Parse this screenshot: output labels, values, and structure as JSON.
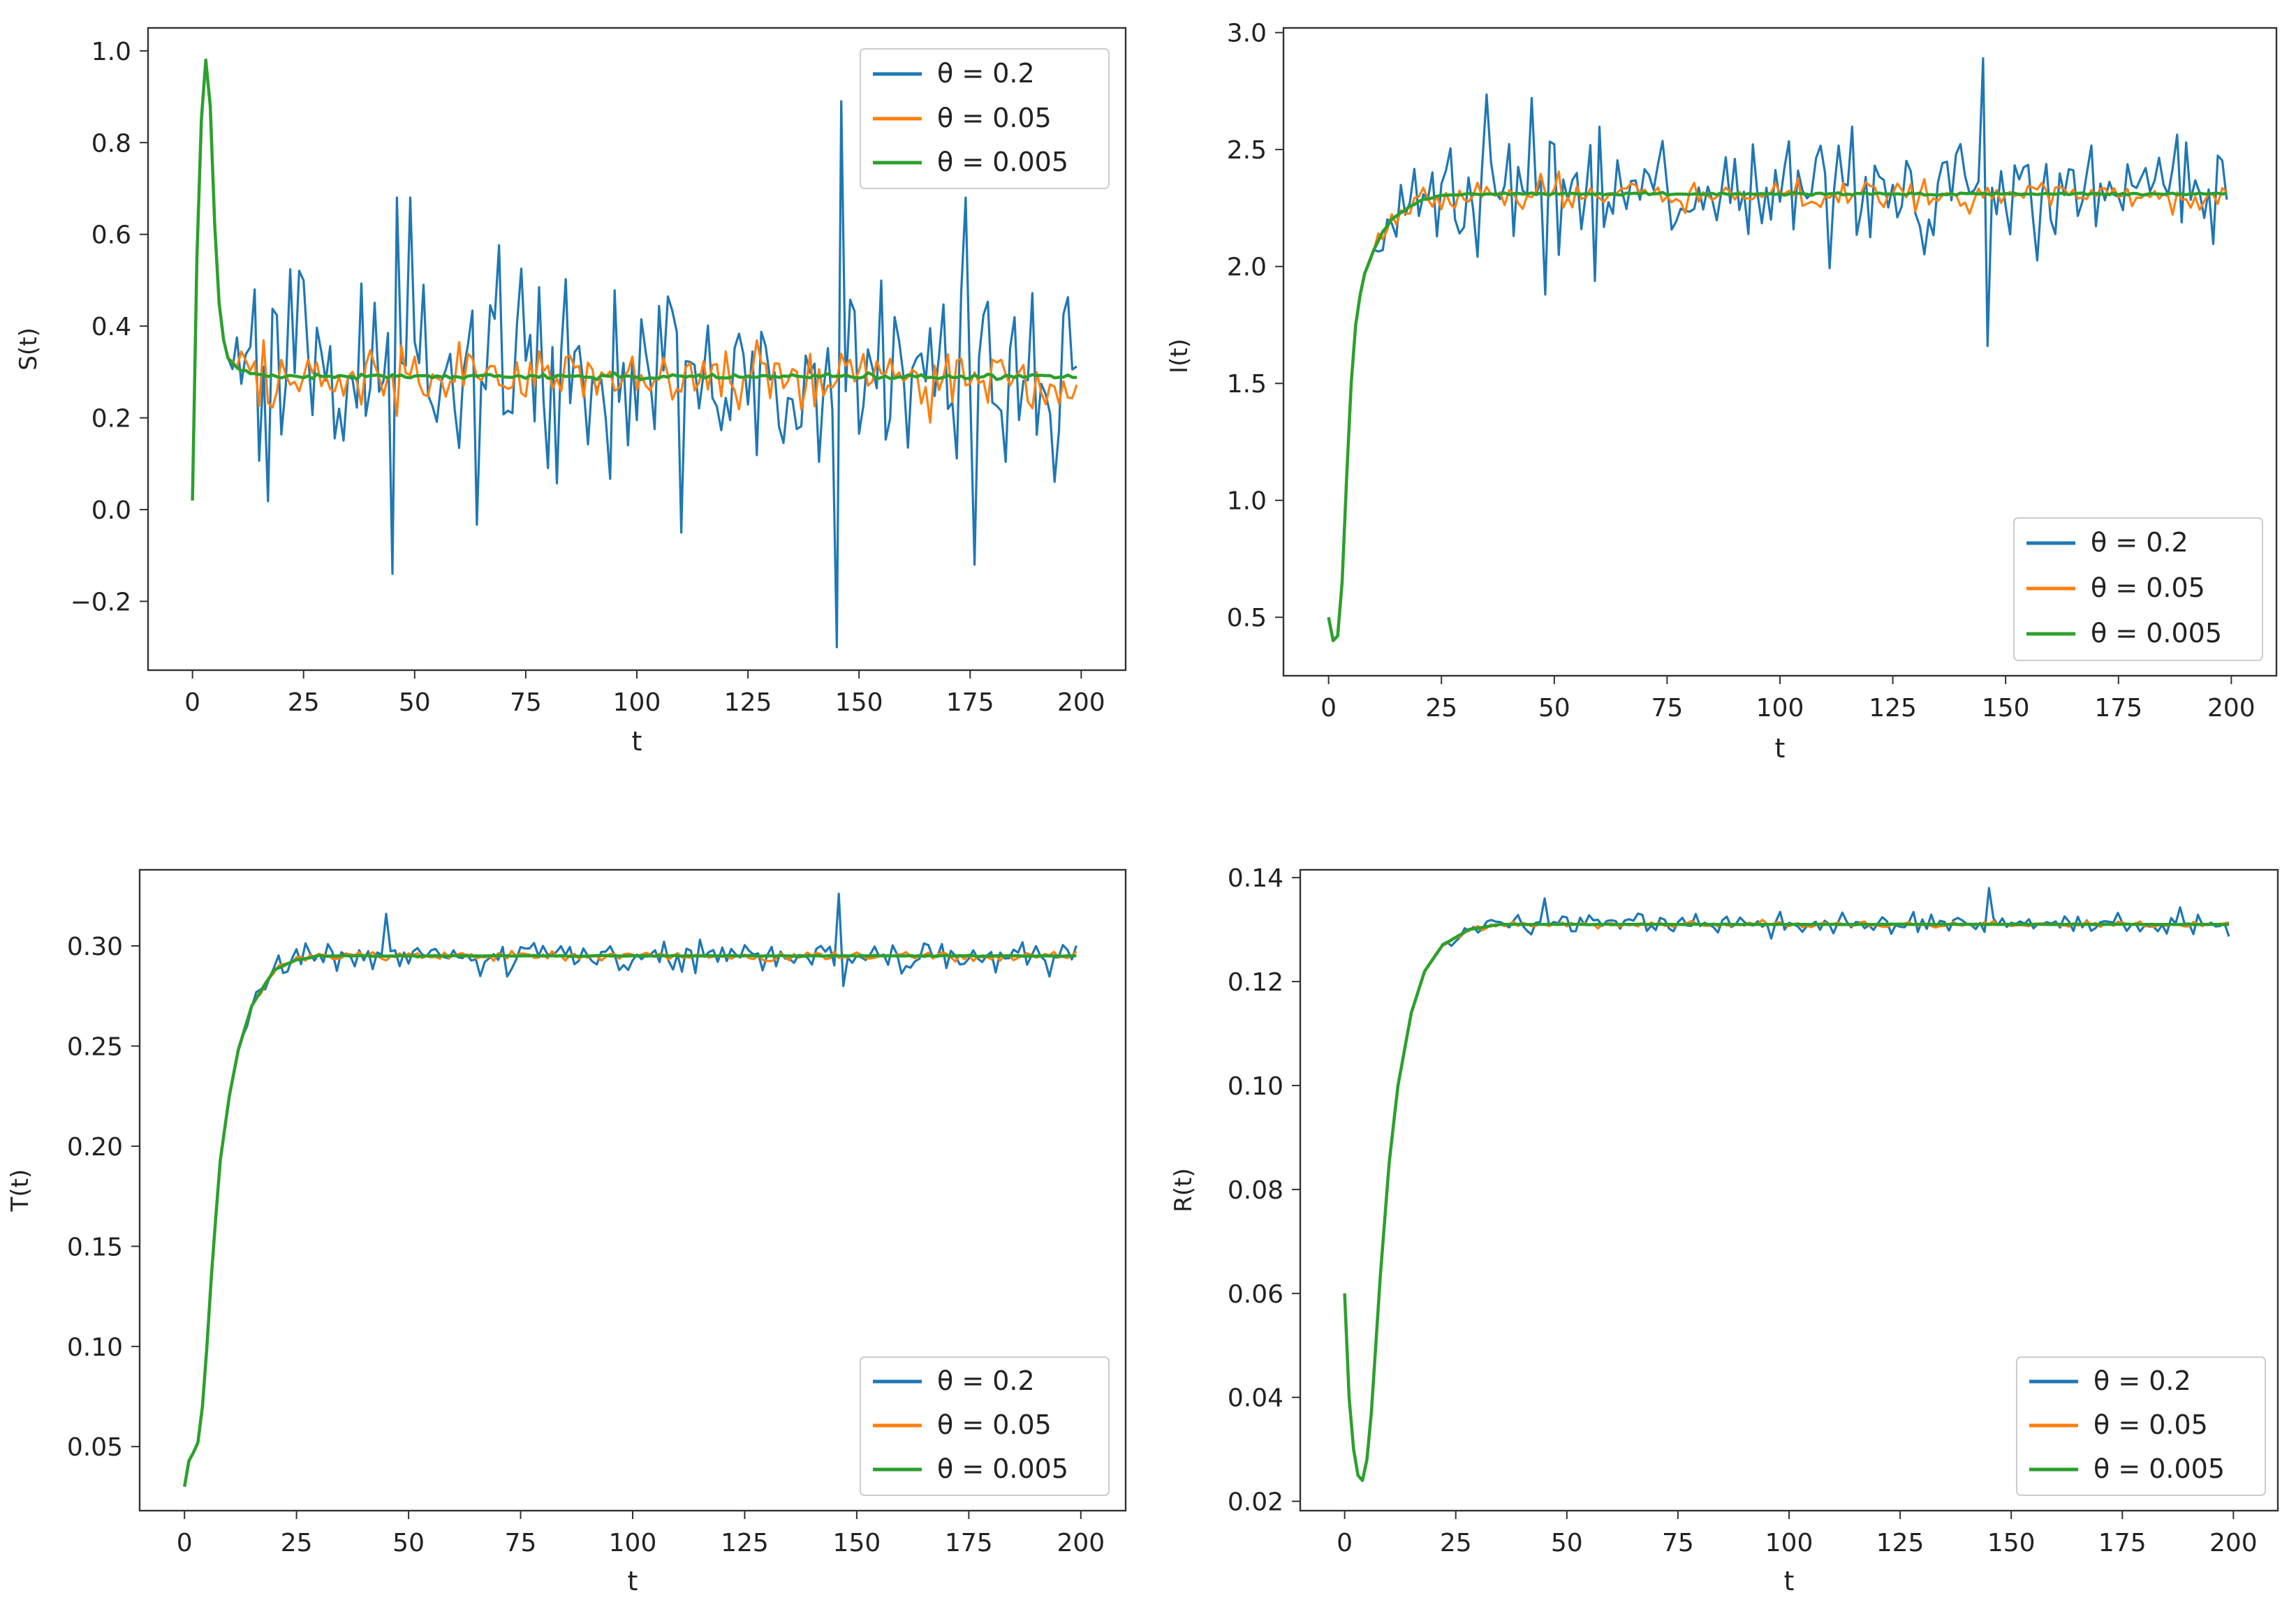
{
  "legend_labels": [
    "θ = 0.2",
    "θ = 0.05",
    "θ = 0.005"
  ],
  "series_colors": [
    "#1f77b4",
    "#ff7f0e",
    "#2ca02c"
  ],
  "chart_data": [
    {
      "type": "line",
      "id": "S",
      "xlabel": "t",
      "ylabel": "S(t)",
      "xlim": [
        -10,
        210
      ],
      "ylim": [
        -0.35,
        1.05
      ],
      "xticks": [
        0,
        25,
        50,
        75,
        100,
        125,
        150,
        175,
        200
      ],
      "yticks": [
        -0.2,
        0.0,
        0.2,
        0.4,
        0.6,
        0.8,
        1.0
      ],
      "ytick_labels": [
        "−0.2",
        "0.0",
        "0.2",
        "0.4",
        "0.6",
        "0.8",
        "1.0"
      ],
      "legend_position": "top-right",
      "baseline": {
        "x": [
          0,
          1,
          2,
          3,
          4,
          5,
          6,
          7,
          8,
          10,
          12,
          15,
          20,
          30,
          60,
          200
        ],
        "y": [
          0.02,
          0.55,
          0.85,
          0.98,
          0.88,
          0.62,
          0.45,
          0.37,
          0.33,
          0.31,
          0.3,
          0.295,
          0.29,
          0.29,
          0.29,
          0.29
        ]
      },
      "eq_value": 0.29,
      "noise": [
        0.2,
        0.06,
        0.005
      ],
      "noise_start": 8,
      "spikes": [
        {
          "x": 146,
          "v": 0.89
        },
        {
          "x": 145,
          "v": -0.3
        },
        {
          "x": 45,
          "v": -0.14
        },
        {
          "x": 46,
          "v": 0.68
        },
        {
          "x": 49,
          "v": 0.68
        },
        {
          "x": 110,
          "v": -0.05
        },
        {
          "x": 174,
          "v": 0.68
        },
        {
          "x": 176,
          "v": -0.12
        }
      ]
    },
    {
      "type": "line",
      "id": "I",
      "xlabel": "t",
      "ylabel": "I(t)",
      "xlim": [
        -10,
        210
      ],
      "ylim": [
        0.25,
        3.02
      ],
      "xticks": [
        0,
        25,
        50,
        75,
        100,
        125,
        150,
        175,
        200
      ],
      "yticks": [
        0.5,
        1.0,
        1.5,
        2.0,
        2.5,
        3.0
      ],
      "ytick_labels": [
        "0.5",
        "1.0",
        "1.5",
        "2.0",
        "2.5",
        "3.0"
      ],
      "legend_position": "lower-right",
      "baseline": {
        "x": [
          0,
          1,
          2,
          3,
          4,
          5,
          6,
          7,
          8,
          10,
          12,
          15,
          20,
          25,
          30,
          200
        ],
        "y": [
          0.5,
          0.4,
          0.42,
          0.65,
          1.1,
          1.5,
          1.75,
          1.88,
          1.97,
          2.07,
          2.15,
          2.22,
          2.28,
          2.3,
          2.31,
          2.31
        ]
      },
      "eq_value": 2.31,
      "noise": [
        0.22,
        0.06,
        0.005
      ],
      "noise_start": 8,
      "spikes": [
        {
          "x": 145,
          "v": 2.89
        },
        {
          "x": 146,
          "v": 1.66
        },
        {
          "x": 45,
          "v": 2.72
        },
        {
          "x": 48,
          "v": 1.88
        }
      ]
    },
    {
      "type": "line",
      "id": "T",
      "xlabel": "t",
      "ylabel": "T(t)",
      "xlim": [
        -10,
        210
      ],
      "ylim": [
        0.018,
        0.338
      ],
      "xticks": [
        0,
        25,
        50,
        75,
        100,
        125,
        150,
        175,
        200
      ],
      "yticks": [
        0.05,
        0.1,
        0.15,
        0.2,
        0.25,
        0.3
      ],
      "ytick_labels": [
        "0.05",
        "0.10",
        "0.15",
        "0.20",
        "0.25",
        "0.30"
      ],
      "legend_position": "lower-right",
      "baseline": {
        "x": [
          0,
          1,
          2,
          3,
          4,
          5,
          6,
          7,
          8,
          10,
          12,
          15,
          20,
          25,
          30,
          200
        ],
        "y": [
          0.03,
          0.043,
          0.047,
          0.052,
          0.07,
          0.1,
          0.135,
          0.165,
          0.193,
          0.225,
          0.248,
          0.27,
          0.288,
          0.293,
          0.295,
          0.295
        ]
      },
      "eq_value": 0.295,
      "noise": [
        0.007,
        0.002,
        0.0002
      ],
      "noise_start": 12,
      "spikes": [
        {
          "x": 146,
          "v": 0.326
        },
        {
          "x": 147,
          "v": 0.28
        },
        {
          "x": 45,
          "v": 0.316
        }
      ]
    },
    {
      "type": "line",
      "id": "R",
      "xlabel": "t",
      "ylabel": "R(t)",
      "xlim": [
        -10,
        210
      ],
      "ylim": [
        0.0182,
        0.1415
      ],
      "xticks": [
        0,
        25,
        50,
        75,
        100,
        125,
        150,
        175,
        200
      ],
      "yticks": [
        0.02,
        0.04,
        0.06,
        0.08,
        0.1,
        0.12,
        0.14
      ],
      "ytick_labels": [
        "0.02",
        "0.04",
        "0.06",
        "0.08",
        "0.10",
        "0.12",
        "0.14"
      ],
      "legend_position": "lower-right",
      "baseline": {
        "x": [
          0,
          1,
          2,
          3,
          4,
          5,
          6,
          7,
          8,
          10,
          12,
          15,
          18,
          22,
          28,
          35,
          200
        ],
        "y": [
          0.06,
          0.04,
          0.03,
          0.025,
          0.024,
          0.028,
          0.037,
          0.05,
          0.063,
          0.085,
          0.1,
          0.114,
          0.122,
          0.127,
          0.13,
          0.131,
          0.131
        ]
      },
      "eq_value": 0.131,
      "noise": [
        0.0018,
        0.0005,
        5e-05
      ],
      "noise_start": 20,
      "spikes": [
        {
          "x": 145,
          "v": 0.138
        },
        {
          "x": 45,
          "v": 0.136
        }
      ]
    }
  ]
}
